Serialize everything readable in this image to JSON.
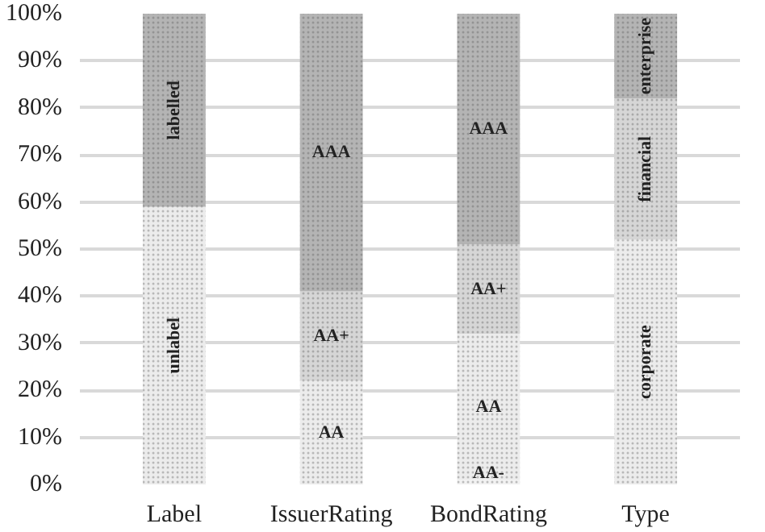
{
  "chart_data": {
    "type": "bar",
    "stacked": true,
    "categories": [
      "Label",
      "IssuerRating",
      "BondRating",
      "Type"
    ],
    "series": [
      {
        "name": "unlabel",
        "color": "#ececec",
        "values": [
          59,
          null,
          null,
          null
        ]
      },
      {
        "name": "labelled",
        "color": "#b4b4b4",
        "values": [
          41,
          null,
          null,
          null
        ]
      },
      {
        "name": "AA-",
        "color": "#f2f2f2",
        "values": [
          null,
          null,
          1,
          null
        ]
      },
      {
        "name": "AA",
        "color": "#ececec",
        "values": [
          null,
          22,
          31,
          null
        ]
      },
      {
        "name": "AA+",
        "color": "#d6d6d6",
        "values": [
          null,
          19,
          19,
          null
        ]
      },
      {
        "name": "AAA",
        "color": "#b4b4b4",
        "values": [
          null,
          59,
          49,
          null
        ]
      },
      {
        "name": "corporate",
        "color": "#ececec",
        "values": [
          null,
          null,
          null,
          52
        ]
      },
      {
        "name": "financial",
        "color": "#d6d6d6",
        "values": [
          null,
          null,
          null,
          30
        ]
      },
      {
        "name": "enterprise",
        "color": "#b4b4b4",
        "values": [
          null,
          null,
          null,
          18
        ]
      }
    ],
    "ylim": [
      0,
      100
    ],
    "yticks": [
      {
        "value": 0,
        "label": "0%"
      },
      {
        "value": 10,
        "label": "10%"
      },
      {
        "value": 20,
        "label": "20%"
      },
      {
        "value": 30,
        "label": "30%"
      },
      {
        "value": 40,
        "label": "40%"
      },
      {
        "value": 50,
        "label": "50%"
      },
      {
        "value": 60,
        "label": "60%"
      },
      {
        "value": 70,
        "label": "70%"
      },
      {
        "value": 80,
        "label": "80%"
      },
      {
        "value": 90,
        "label": "90%"
      },
      {
        "value": 100,
        "label": "100%"
      }
    ],
    "grid": "y"
  }
}
